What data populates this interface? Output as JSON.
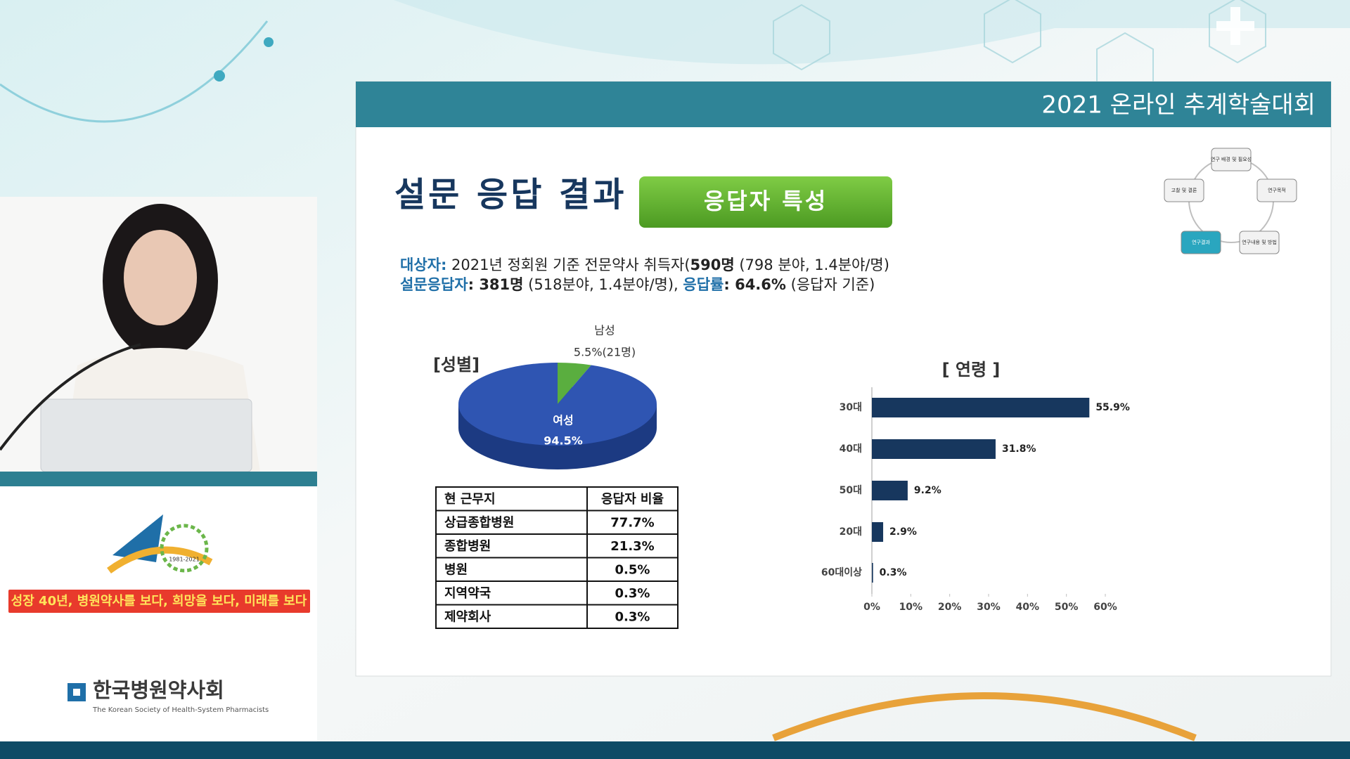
{
  "header": {
    "banner": "2021 온라인 추계학술대회"
  },
  "sidebar": {
    "emblem_years": "1981-2021",
    "slogan": "성장 40년, 병원약사를 보다, 희망을 보다, 미래를 보다",
    "logo_ko": "한국병원약사회",
    "logo_en": "The Korean Society of Health-System Pharmacists"
  },
  "slide": {
    "title": "설문 응답 결과",
    "badge": "응답자 특성",
    "lines": [
      [
        "대상자:",
        " 2021년 정회원 기준 전문약사 취득자(",
        "590명",
        " (798 분야, 1.4분야/명)"
      ],
      [
        "설문응답자",
        ": 381명",
        " (518분야, 1.4분야/명), ",
        "응답률",
        ": 64.6%",
        " (응답자 기준)"
      ]
    ]
  },
  "cycle": {
    "nodes": [
      "연구 배경 및 필요성",
      "연구목적",
      "연구내용 및 방법",
      "연구결과",
      "고찰 및 결론"
    ]
  },
  "table": {
    "header": [
      "현 근무지",
      "응답자 비율"
    ],
    "rows": [
      [
        "상급종합병원",
        "77.7%"
      ],
      [
        "종합병원",
        "21.3%"
      ],
      [
        "병원",
        "0.5%"
      ],
      [
        "지역약국",
        "0.3%"
      ],
      [
        "제약회사",
        "0.3%"
      ]
    ]
  },
  "chart_data": [
    {
      "type": "pie",
      "title": "[성별]",
      "categories": [
        "남성",
        "여성"
      ],
      "values": [
        5.5,
        94.5
      ],
      "value_labels": [
        "5.5%(21명)",
        "94.5%"
      ],
      "colors": [
        "#5aae3f",
        "#2f55b2"
      ]
    },
    {
      "type": "bar",
      "orientation": "horizontal",
      "title": "[ 연령 ]",
      "categories": [
        "30대",
        "40대",
        "50대",
        "20대",
        "60대이상"
      ],
      "values": [
        55.9,
        31.8,
        9.2,
        2.9,
        0.3
      ],
      "value_labels": [
        "55.9%",
        "31.8%",
        "9.2%",
        "2.9%",
        "0.3%"
      ],
      "color": "#17375e",
      "xlim": [
        0,
        60
      ],
      "xticks": [
        {
          "value": 0,
          "label": "0%"
        },
        {
          "value": 10,
          "label": "10%"
        },
        {
          "value": 20,
          "label": "20%"
        },
        {
          "value": 30,
          "label": "30%"
        },
        {
          "value": 40,
          "label": "40%"
        },
        {
          "value": 50,
          "label": "50%"
        },
        {
          "value": 60,
          "label": "60%"
        }
      ]
    }
  ]
}
